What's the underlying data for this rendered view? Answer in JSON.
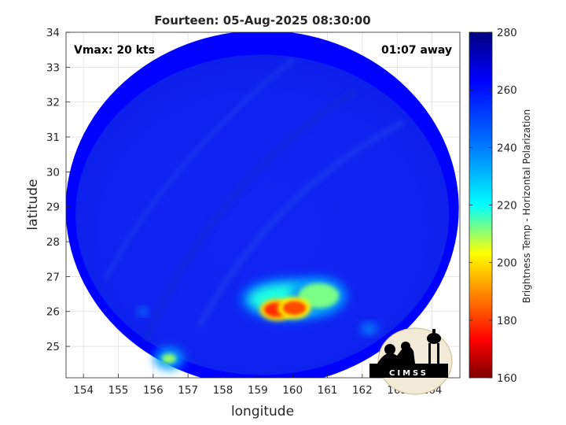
{
  "chart_data": {
    "type": "heatmap",
    "title": "Fourteen: 05-Aug-2025 08:30:00",
    "xlabel": "longitude",
    "ylabel": "latitude",
    "xlim": [
      153.5,
      164.8
    ],
    "ylim": [
      24.1,
      34
    ],
    "x_ticks": [
      "154",
      "155",
      "156",
      "157",
      "158",
      "159",
      "160",
      "161",
      "162",
      "163",
      "164"
    ],
    "y_ticks": [
      "25",
      "26",
      "27",
      "28",
      "29",
      "30",
      "31",
      "32",
      "33",
      "34"
    ],
    "grid": true,
    "annotations": {
      "vmax": "Vmax: 20 kts",
      "time_offset": "01:07 away"
    },
    "colorbar": {
      "label": "Brightness Temp - Horizontal Polarization",
      "range": [
        160,
        280
      ],
      "ticks": [
        "160",
        "180",
        "200",
        "220",
        "240",
        "260",
        "280"
      ]
    },
    "scan_region": {
      "center_lon": 159.13,
      "center_lat": 28.95,
      "radius_lon": 5.64,
      "radius_lat": 5.1,
      "background_value": 263
    },
    "features": [
      {
        "lon": 159.9,
        "lat": 26.35,
        "value": 218
      },
      {
        "lon": 160.75,
        "lat": 26.45,
        "value": 212
      },
      {
        "lon": 159.55,
        "lat": 26.05,
        "value": 178
      },
      {
        "lon": 160.05,
        "lat": 26.1,
        "value": 182
      },
      {
        "lon": 156.45,
        "lat": 24.65,
        "value": 210
      },
      {
        "lon": 155.7,
        "lat": 26.0,
        "value": 230
      },
      {
        "lon": 162.2,
        "lat": 25.5,
        "value": 235
      }
    ],
    "logo_text": "CIMSS"
  }
}
